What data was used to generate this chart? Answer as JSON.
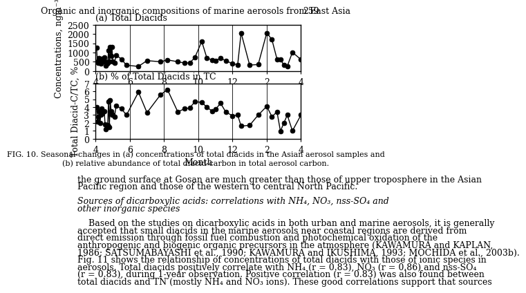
{
  "title_a": "(a) Total Diacids",
  "title_b": "(b) % of Total Diacids in TC",
  "ylabel_a": "Concentrations, ngm⁻³",
  "ylabel_b": "Total Diacid-C/TC, %",
  "xlabel": "Month",
  "header": "Organic and inorganic compositions of marine aerosols from East Asia",
  "page_num": "259",
  "xlim": [
    4,
    16
  ],
  "xticks": [
    4,
    6,
    8,
    10,
    12,
    14,
    16
  ],
  "xticklabels": [
    "4",
    "6",
    "8",
    "10",
    "12",
    "2",
    "4"
  ],
  "ylim_a": [
    0,
    2500
  ],
  "yticks_a": [
    0,
    500,
    1000,
    1500,
    2000,
    2500
  ],
  "ylim_b": [
    0,
    7
  ],
  "yticks_b": [
    0,
    1,
    2,
    3,
    4,
    5,
    6,
    7
  ],
  "x_a": [
    4.05,
    4.1,
    4.15,
    4.2,
    4.25,
    4.3,
    4.35,
    4.4,
    4.5,
    4.55,
    4.6,
    4.65,
    4.7,
    4.75,
    4.8,
    4.85,
    4.9,
    4.95,
    5.0,
    5.1,
    5.2,
    5.5,
    5.8,
    6.5,
    7.0,
    7.8,
    8.2,
    8.8,
    9.2,
    9.5,
    9.8,
    10.2,
    10.5,
    10.8,
    11.0,
    11.3,
    11.6,
    12.0,
    12.3,
    12.5,
    13.0,
    13.5,
    14.0,
    14.3,
    14.6,
    14.8,
    15.0,
    15.2,
    15.5,
    16.0
  ],
  "y_a": [
    1270,
    500,
    450,
    700,
    450,
    400,
    650,
    500,
    750,
    500,
    300,
    400,
    420,
    1100,
    500,
    1280,
    800,
    1310,
    500,
    450,
    860,
    640,
    310,
    250,
    560,
    500,
    600,
    500,
    430,
    440,
    730,
    1600,
    700,
    600,
    550,
    700,
    550,
    400,
    340,
    2060,
    320,
    350,
    2060,
    1700,
    640,
    620,
    330,
    260,
    1010,
    620
  ],
  "x_b": [
    4.05,
    4.1,
    4.15,
    4.2,
    4.25,
    4.3,
    4.35,
    4.4,
    4.5,
    4.55,
    4.6,
    4.65,
    4.7,
    4.75,
    4.8,
    4.85,
    4.9,
    4.95,
    5.0,
    5.1,
    5.2,
    5.5,
    5.8,
    6.5,
    7.0,
    7.8,
    8.2,
    8.8,
    9.2,
    9.5,
    9.8,
    10.2,
    10.5,
    10.8,
    11.0,
    11.3,
    11.6,
    12.0,
    12.3,
    12.5,
    13.0,
    13.5,
    14.0,
    14.3,
    14.6,
    14.8,
    15.0,
    15.2,
    15.5,
    16.0
  ],
  "y_b": [
    4.0,
    2.2,
    2.8,
    3.5,
    2.0,
    3.0,
    3.8,
    3.2,
    3.5,
    1.8,
    1.2,
    1.5,
    1.7,
    4.7,
    1.5,
    4.9,
    3.5,
    3.0,
    3.0,
    2.8,
    4.2,
    3.8,
    3.0,
    5.9,
    3.3,
    5.6,
    6.2,
    3.4,
    3.8,
    3.9,
    4.7,
    4.6,
    4.0,
    3.5,
    3.7,
    4.5,
    3.4,
    2.9,
    3.0,
    1.6,
    1.7,
    3.0,
    4.1,
    2.8,
    3.4,
    0.95,
    2.0,
    3.0,
    1.0,
    3.0
  ],
  "line_color": "#000000",
  "marker_style": "o",
  "marker_size": 5,
  "marker_color": "#000000",
  "line_width": 1.0,
  "fig_caption_line1": "FIG. 10. Seasonal changes in (a) concentrations of total diacids in the Asian aerosol samples and",
  "fig_caption_line2": "(b) relative abundance of total diacid-carbon in total aerosol carbon.",
  "body_text_1": "the ground surface at Gosan are much greater than those of upper troposphere in the Asian",
  "body_text_2": "Pacific region and those of the western to central North Pacific.",
  "italic_heading_1": "Sources of dicarboxylic acids: correlations with NH",
  "bg_color": "#ffffff"
}
